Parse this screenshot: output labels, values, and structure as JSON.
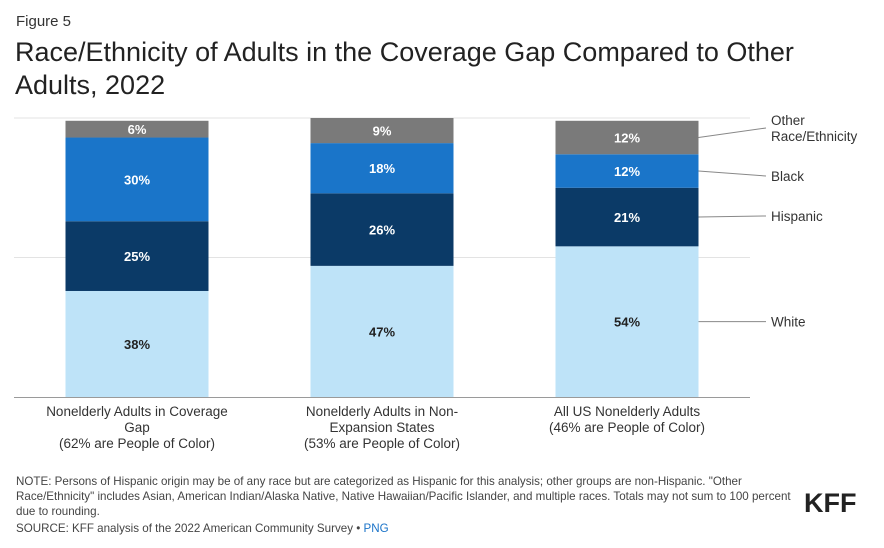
{
  "figure_label": "Figure 5",
  "title": "Race/Ethnicity of Adults in the Coverage Gap Compared to Other Adults, 2022",
  "note": "NOTE: Persons of Hispanic origin may be of any race but are categorized as Hispanic for this analysis; other groups are non-Hispanic. \"Other Race/Ethnicity\" includes Asian, American Indian/Alaska Native, Native Hawaiian/Pacific Islander, and multiple races. Totals may not sum to 100 percent due to rounding.",
  "source": "SOURCE: KFF analysis of the 2022 American Community Survey •",
  "source_link": "PNG",
  "logo": "KFF",
  "colors": {
    "white": "#bee3f8",
    "hispanic": "#0b3a67",
    "black": "#1a75c9",
    "other": "#7a7a7a",
    "label_dark": "#222222",
    "label_light": "#ffffff"
  },
  "chart_data": {
    "type": "bar",
    "stacked": true,
    "ylim": [
      0,
      100
    ],
    "grid": true,
    "categories": [
      "Nonelderly Adults in Coverage Gap (62% are People of Color)",
      "Nonelderly Adults in Non-Expansion States (53% are People of Color)",
      "All US Nonelderly Adults (46% are People of Color)"
    ],
    "category_lines": [
      [
        "Nonelderly Adults in Coverage",
        "Gap",
        "(62% are People of Color)"
      ],
      [
        "Nonelderly Adults in Non-",
        "Expansion States",
        "(53% are People of Color)"
      ],
      [
        "All US Nonelderly Adults",
        "(46% are People of Color)"
      ]
    ],
    "series": [
      {
        "key": "white",
        "name": "White",
        "values": [
          38,
          47,
          54
        ],
        "labels": [
          "38%",
          "47%",
          "54%"
        ]
      },
      {
        "key": "hispanic",
        "name": "Hispanic",
        "values": [
          25,
          26,
          21
        ],
        "labels": [
          "25%",
          "26%",
          "21%"
        ]
      },
      {
        "key": "black",
        "name": "Black",
        "values": [
          30,
          18,
          12
        ],
        "labels": [
          "30%",
          "18%",
          "12%"
        ]
      },
      {
        "key": "other",
        "name": "Other Race/Ethnicity",
        "name_lines": [
          "Other",
          "Race/Ethnicity"
        ],
        "values": [
          6,
          9,
          12
        ],
        "labels": [
          "6%",
          "9%",
          "12%"
        ]
      }
    ],
    "legend": "right, labels attached to last bar"
  }
}
